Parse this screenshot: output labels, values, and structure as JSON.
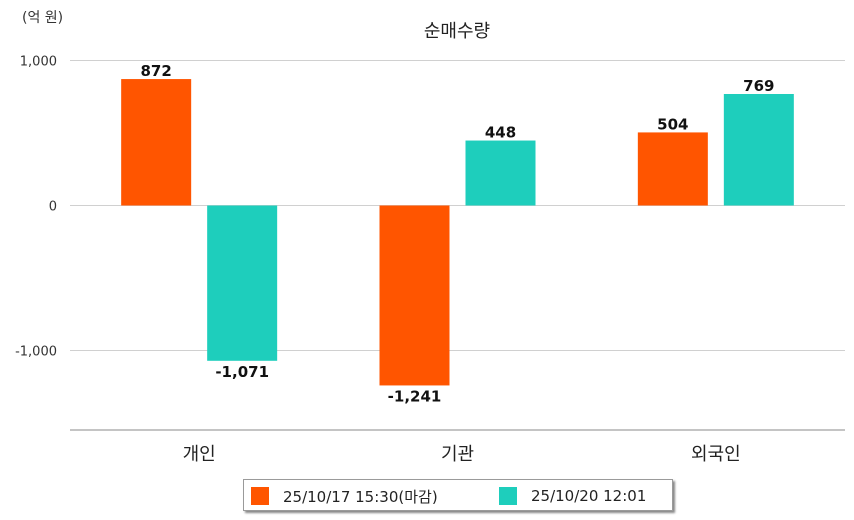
{
  "chart_data": {
    "type": "bar",
    "title": "순매수량",
    "unit_label": "(억 원)",
    "categories": [
      "개인",
      "기관",
      "외국인"
    ],
    "series": [
      {
        "name": "25/10/17 15:30(마감)",
        "color": "#ff5500",
        "values": [
          872,
          -1241,
          504
        ],
        "labels": [
          "872",
          "-1,241",
          "504"
        ]
      },
      {
        "name": "25/10/20 12:01",
        "color": "#1ecebc",
        "values": [
          -1071,
          448,
          769
        ],
        "labels": [
          "-1,071",
          "448",
          "769"
        ]
      }
    ],
    "y_ticks": [
      {
        "value": 1000,
        "label": "1,000"
      },
      {
        "value": 0,
        "label": "0"
      },
      {
        "value": -1000,
        "label": "-1,000"
      }
    ],
    "ylim": [
      -1550,
      1000
    ],
    "grid": true,
    "legend_position": "bottom"
  }
}
